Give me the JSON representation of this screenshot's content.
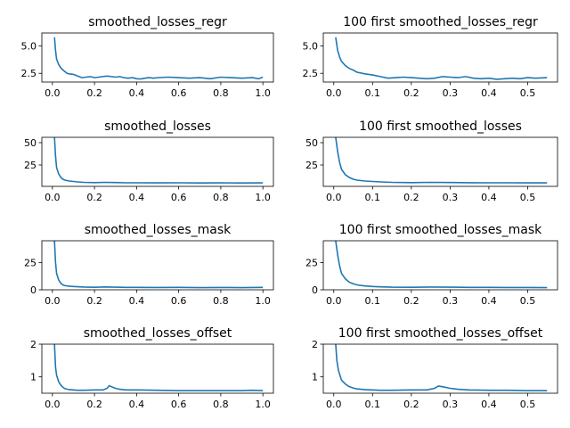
{
  "figure": {
    "line_color": "#1f77b4",
    "background": "#ffffff"
  },
  "chart_data": [
    {
      "type": "line",
      "title": "smoothed_losses_regr",
      "xlim": [
        -0.05,
        1.05
      ],
      "ylim": [
        1.7,
        6.2
      ],
      "xticks": [
        0.0,
        0.2,
        0.4,
        0.6,
        0.8,
        1.0
      ],
      "xtick_labels": [
        "0.0",
        "0.2",
        "0.4",
        "0.6",
        "0.8",
        "1.0"
      ],
      "yticks": [
        2.5,
        5.0
      ],
      "ytick_labels": [
        "2.5",
        "5.0"
      ],
      "series": [
        {
          "x": [
            0.01,
            0.015,
            0.02,
            0.03,
            0.04,
            0.05,
            0.06,
            0.07,
            0.08,
            0.1,
            0.12,
            0.14,
            0.16,
            0.18,
            0.2,
            0.22,
            0.24,
            0.26,
            0.28,
            0.3,
            0.32,
            0.34,
            0.36,
            0.38,
            0.4,
            0.42,
            0.44,
            0.46,
            0.48,
            0.5,
            0.55,
            0.6,
            0.65,
            0.7,
            0.75,
            0.8,
            0.85,
            0.9,
            0.95,
            0.98,
            1.0
          ],
          "y": [
            5.8,
            4.6,
            3.8,
            3.3,
            3.0,
            2.8,
            2.65,
            2.5,
            2.45,
            2.4,
            2.25,
            2.1,
            2.15,
            2.2,
            2.1,
            2.15,
            2.2,
            2.25,
            2.2,
            2.15,
            2.2,
            2.1,
            2.05,
            2.1,
            2.0,
            1.98,
            2.05,
            2.1,
            2.05,
            2.1,
            2.15,
            2.1,
            2.05,
            2.1,
            2.0,
            2.15,
            2.1,
            2.05,
            2.1,
            2.0,
            2.15
          ]
        }
      ]
    },
    {
      "type": "line",
      "title": "100 first smoothed_losses_regr",
      "xlim": [
        -0.027,
        0.577
      ],
      "ylim": [
        1.7,
        6.2
      ],
      "xticks": [
        0.0,
        0.1,
        0.2,
        0.3,
        0.4,
        0.5
      ],
      "xtick_labels": [
        "0.0",
        "0.1",
        "0.2",
        "0.3",
        "0.4",
        "0.5"
      ],
      "yticks": [
        2.5,
        5.0
      ],
      "ytick_labels": [
        "2.5",
        "5.0"
      ],
      "series": [
        {
          "x": [
            0.005,
            0.01,
            0.015,
            0.02,
            0.03,
            0.04,
            0.05,
            0.06,
            0.08,
            0.1,
            0.12,
            0.14,
            0.16,
            0.18,
            0.2,
            0.22,
            0.24,
            0.26,
            0.28,
            0.3,
            0.32,
            0.34,
            0.36,
            0.38,
            0.4,
            0.42,
            0.44,
            0.46,
            0.48,
            0.5,
            0.52,
            0.55
          ],
          "y": [
            5.8,
            4.6,
            4.0,
            3.6,
            3.2,
            2.95,
            2.8,
            2.6,
            2.45,
            2.35,
            2.2,
            2.05,
            2.1,
            2.15,
            2.1,
            2.05,
            2.0,
            2.05,
            2.2,
            2.15,
            2.1,
            2.2,
            2.05,
            2.0,
            2.05,
            1.95,
            2.0,
            2.05,
            2.0,
            2.1,
            2.05,
            2.1
          ]
        }
      ]
    },
    {
      "type": "line",
      "title": "smoothed_losses",
      "xlim": [
        -0.05,
        1.05
      ],
      "ylim": [
        1.0,
        56.0
      ],
      "xticks": [
        0.0,
        0.2,
        0.4,
        0.6,
        0.8,
        1.0
      ],
      "xtick_labels": [
        "0.0",
        "0.2",
        "0.4",
        "0.6",
        "0.8",
        "1.0"
      ],
      "yticks": [
        25,
        50
      ],
      "ytick_labels": [
        "25",
        "50"
      ],
      "series": [
        {
          "x": [
            0.01,
            0.015,
            0.02,
            0.03,
            0.04,
            0.05,
            0.06,
            0.08,
            0.1,
            0.12,
            0.15,
            0.2,
            0.25,
            0.3,
            0.35,
            0.4,
            0.5,
            0.6,
            0.7,
            0.8,
            0.9,
            1.0
          ],
          "y": [
            56,
            35,
            22,
            15,
            11,
            9,
            8,
            7,
            6.5,
            6,
            5.5,
            5.2,
            5.5,
            5.3,
            5.0,
            5.0,
            4.9,
            5.0,
            4.8,
            4.9,
            4.8,
            4.9
          ]
        }
      ]
    },
    {
      "type": "line",
      "title": "100 first smoothed_losses",
      "xlim": [
        -0.027,
        0.577
      ],
      "ylim": [
        1.0,
        56.0
      ],
      "xticks": [
        0.0,
        0.1,
        0.2,
        0.3,
        0.4,
        0.5
      ],
      "xtick_labels": [
        "0.0",
        "0.1",
        "0.2",
        "0.3",
        "0.4",
        "0.5"
      ],
      "yticks": [
        25,
        50
      ],
      "ytick_labels": [
        "25",
        "50"
      ],
      "series": [
        {
          "x": [
            0.005,
            0.01,
            0.015,
            0.02,
            0.03,
            0.04,
            0.05,
            0.06,
            0.08,
            0.1,
            0.12,
            0.15,
            0.2,
            0.25,
            0.3,
            0.35,
            0.4,
            0.45,
            0.5,
            0.55
          ],
          "y": [
            56,
            40,
            28,
            20,
            14,
            11,
            9,
            8,
            7,
            6.5,
            6,
            5.5,
            5.2,
            5.5,
            5.3,
            5.1,
            5.0,
            5.0,
            4.9,
            4.9
          ]
        }
      ]
    },
    {
      "type": "line",
      "title": "smoothed_losses_mask",
      "xlim": [
        -0.05,
        1.05
      ],
      "ylim": [
        0.0,
        45.0
      ],
      "xticks": [
        0.0,
        0.2,
        0.4,
        0.6,
        0.8,
        1.0
      ],
      "xtick_labels": [
        "0.0",
        "0.2",
        "0.4",
        "0.6",
        "0.8",
        "1.0"
      ],
      "yticks": [
        0,
        25
      ],
      "ytick_labels": [
        "0",
        "25"
      ],
      "series": [
        {
          "x": [
            0.01,
            0.015,
            0.02,
            0.03,
            0.04,
            0.05,
            0.06,
            0.08,
            0.1,
            0.12,
            0.15,
            0.2,
            0.25,
            0.3,
            0.35,
            0.4,
            0.5,
            0.6,
            0.7,
            0.8,
            0.9,
            1.0
          ],
          "y": [
            45,
            25,
            15,
            9,
            6,
            4.5,
            3.8,
            3.3,
            3.0,
            2.8,
            2.5,
            2.3,
            2.6,
            2.4,
            2.2,
            2.2,
            2.1,
            2.2,
            2.0,
            2.1,
            2.0,
            2.2
          ]
        }
      ]
    },
    {
      "type": "line",
      "title": "100 first smoothed_losses_mask",
      "xlim": [
        -0.027,
        0.577
      ],
      "ylim": [
        0.0,
        45.0
      ],
      "xticks": [
        0.0,
        0.1,
        0.2,
        0.3,
        0.4,
        0.5
      ],
      "xtick_labels": [
        "0.0",
        "0.1",
        "0.2",
        "0.3",
        "0.4",
        "0.5"
      ],
      "yticks": [
        0,
        25
      ],
      "ytick_labels": [
        "0",
        "25"
      ],
      "series": [
        {
          "x": [
            0.005,
            0.01,
            0.015,
            0.02,
            0.03,
            0.04,
            0.05,
            0.06,
            0.08,
            0.1,
            0.12,
            0.15,
            0.2,
            0.25,
            0.3,
            0.35,
            0.4,
            0.45,
            0.5,
            0.55
          ],
          "y": [
            45,
            32,
            22,
            15,
            10,
            7,
            5.5,
            4.5,
            3.5,
            3.0,
            2.7,
            2.4,
            2.3,
            2.5,
            2.4,
            2.2,
            2.2,
            2.1,
            2.1,
            2.0
          ]
        }
      ]
    },
    {
      "type": "line",
      "title": "smoothed_losses_offset",
      "xlim": [
        -0.05,
        1.05
      ],
      "ylim": [
        0.5,
        2.0
      ],
      "xticks": [
        0.0,
        0.2,
        0.4,
        0.6,
        0.8,
        1.0
      ],
      "xtick_labels": [
        "0.0",
        "0.2",
        "0.4",
        "0.6",
        "0.8",
        "1.0"
      ],
      "yticks": [
        1,
        2
      ],
      "ytick_labels": [
        "1",
        "2"
      ],
      "series": [
        {
          "x": [
            0.01,
            0.015,
            0.02,
            0.03,
            0.04,
            0.05,
            0.06,
            0.08,
            0.1,
            0.12,
            0.15,
            0.2,
            0.24,
            0.26,
            0.27,
            0.28,
            0.3,
            0.32,
            0.35,
            0.4,
            0.5,
            0.6,
            0.7,
            0.8,
            0.9,
            0.95,
            1.0
          ],
          "y": [
            2.0,
            1.3,
            1.05,
            0.85,
            0.75,
            0.68,
            0.64,
            0.61,
            0.6,
            0.59,
            0.59,
            0.6,
            0.6,
            0.65,
            0.73,
            0.7,
            0.65,
            0.62,
            0.6,
            0.6,
            0.59,
            0.58,
            0.58,
            0.58,
            0.58,
            0.59,
            0.58
          ]
        }
      ]
    },
    {
      "type": "line",
      "title": "100 first smoothed_losses_offset",
      "xlim": [
        -0.027,
        0.577
      ],
      "ylim": [
        0.5,
        2.0
      ],
      "xticks": [
        0.0,
        0.1,
        0.2,
        0.3,
        0.4,
        0.5
      ],
      "xtick_labels": [
        "0.0",
        "0.1",
        "0.2",
        "0.3",
        "0.4",
        "0.5"
      ],
      "yticks": [
        1,
        2
      ],
      "ytick_labels": [
        "1",
        "2"
      ],
      "series": [
        {
          "x": [
            0.005,
            0.008,
            0.012,
            0.02,
            0.03,
            0.04,
            0.05,
            0.06,
            0.08,
            0.1,
            0.12,
            0.15,
            0.2,
            0.24,
            0.26,
            0.27,
            0.28,
            0.3,
            0.32,
            0.35,
            0.4,
            0.45,
            0.5,
            0.55
          ],
          "y": [
            2.0,
            1.5,
            1.2,
            0.9,
            0.78,
            0.7,
            0.66,
            0.63,
            0.61,
            0.6,
            0.59,
            0.59,
            0.6,
            0.6,
            0.65,
            0.72,
            0.7,
            0.65,
            0.62,
            0.6,
            0.59,
            0.59,
            0.58,
            0.58
          ]
        }
      ]
    }
  ]
}
